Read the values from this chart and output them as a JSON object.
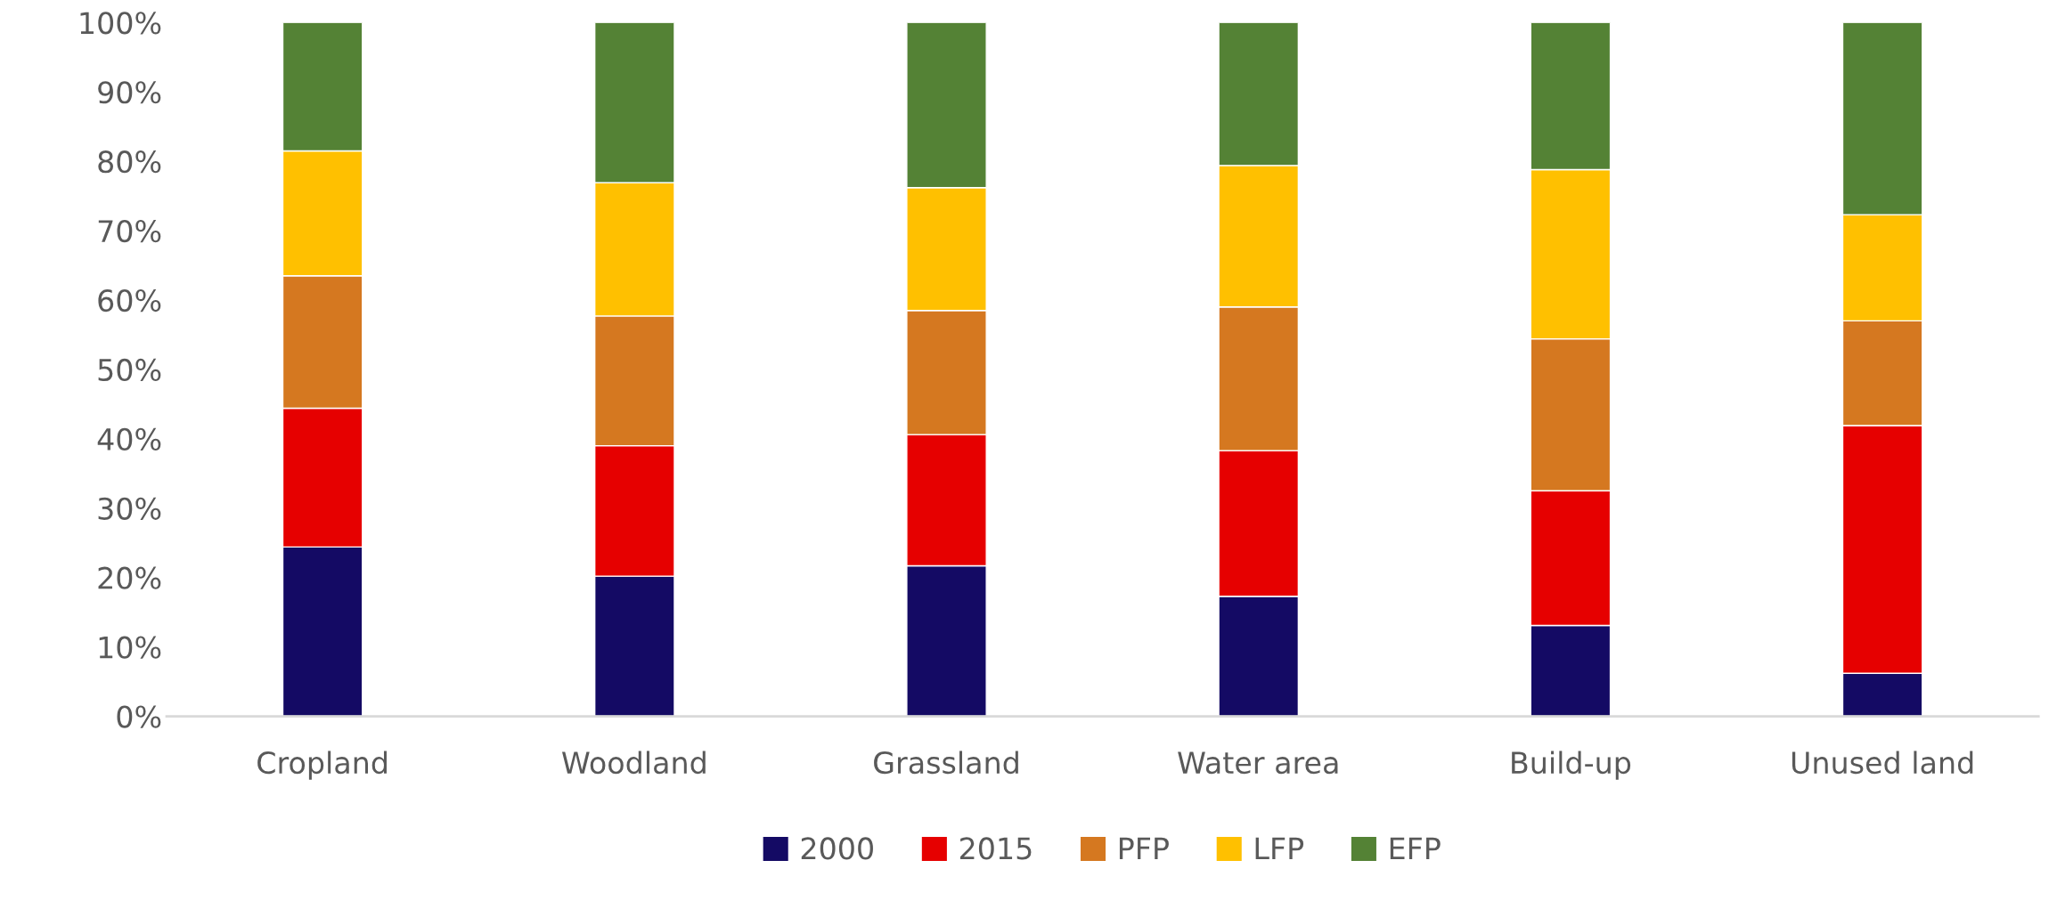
{
  "chart_data": {
    "type": "bar",
    "stacked": true,
    "categories": [
      "Cropland",
      "Woodland",
      "Grassland",
      "Water area",
      "Build-up",
      "Unused land"
    ],
    "series": [
      {
        "name": "2000",
        "color": "#140a64",
        "values": [
          24.4,
          20.2,
          21.7,
          17.3,
          13.1,
          6.2
        ]
      },
      {
        "name": "2015",
        "color": "#e60000",
        "values": [
          20.0,
          18.8,
          18.9,
          21.0,
          19.4,
          35.7
        ]
      },
      {
        "name": "PFP",
        "color": "#d57820",
        "values": [
          19.1,
          18.7,
          17.9,
          20.7,
          21.9,
          15.1
        ]
      },
      {
        "name": "LFP",
        "color": "#ffc000",
        "values": [
          18.0,
          19.2,
          17.7,
          20.4,
          24.4,
          15.3
        ]
      },
      {
        "name": "EFP",
        "color": "#548235",
        "values": [
          18.5,
          23.1,
          23.8,
          20.6,
          21.2,
          27.7
        ]
      }
    ],
    "ylim": [
      0,
      100
    ],
    "yticks": [
      {
        "value": 0,
        "label": "0%"
      },
      {
        "value": 10,
        "label": "10%"
      },
      {
        "value": 20,
        "label": "20%"
      },
      {
        "value": 30,
        "label": "30%"
      },
      {
        "value": 40,
        "label": "40%"
      },
      {
        "value": 50,
        "label": "50%"
      },
      {
        "value": 60,
        "label": "60%"
      },
      {
        "value": 70,
        "label": "70%"
      },
      {
        "value": 80,
        "label": "80%"
      },
      {
        "value": 90,
        "label": "90%"
      },
      {
        "value": 100,
        "label": "100%"
      }
    ],
    "grid": false,
    "legend": "bottom"
  }
}
